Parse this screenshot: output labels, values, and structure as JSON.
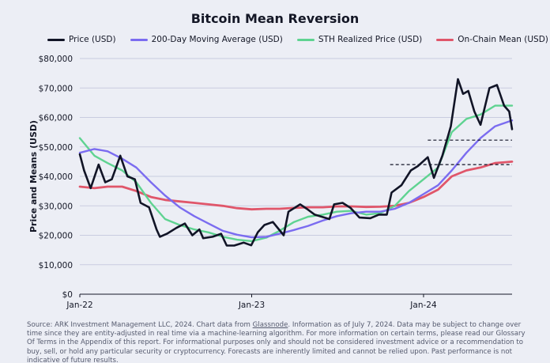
{
  "chart_data": {
    "type": "line",
    "title": "Bitcoin Mean Reversion",
    "ylabel": "Price and Means (USD)",
    "xlabel": "",
    "xlim": [
      "2022-01-01",
      "2024-07-07"
    ],
    "ylim": [
      0,
      80000
    ],
    "x_ticks": [
      {
        "date": "2022-01-01",
        "label": "Jan-22"
      },
      {
        "date": "2023-01-01",
        "label": "Jan-23"
      },
      {
        "date": "2024-01-01",
        "label": "Jan-24"
      }
    ],
    "y_ticks": [
      {
        "v": 0,
        "label": "$0"
      },
      {
        "v": 10000,
        "label": "$10,000"
      },
      {
        "v": 20000,
        "label": "$20,000"
      },
      {
        "v": 30000,
        "label": "$30,000"
      },
      {
        "v": 40000,
        "label": "$40,000"
      },
      {
        "v": 50000,
        "label": "$50,000"
      },
      {
        "v": 60000,
        "label": "$60,000"
      },
      {
        "v": 70000,
        "label": "$70,000"
      },
      {
        "v": 80000,
        "label": "$80,000"
      }
    ],
    "grid": true,
    "legend_position": "top",
    "series": [
      {
        "name": "Price (USD)",
        "color": "#111426",
        "width": 2.6,
        "points": [
          [
            "2022-01-01",
            47500
          ],
          [
            "2022-01-10",
            42000
          ],
          [
            "2022-01-24",
            36000
          ],
          [
            "2022-02-10",
            44000
          ],
          [
            "2022-02-24",
            38000
          ],
          [
            "2022-03-10",
            39000
          ],
          [
            "2022-03-28",
            47000
          ],
          [
            "2022-04-12",
            40000
          ],
          [
            "2022-04-28",
            39000
          ],
          [
            "2022-05-10",
            31000
          ],
          [
            "2022-05-28",
            29500
          ],
          [
            "2022-06-13",
            22000
          ],
          [
            "2022-06-20",
            19500
          ],
          [
            "2022-07-05",
            20500
          ],
          [
            "2022-07-25",
            22500
          ],
          [
            "2022-08-12",
            24000
          ],
          [
            "2022-08-28",
            20000
          ],
          [
            "2022-09-12",
            22000
          ],
          [
            "2022-09-20",
            19000
          ],
          [
            "2022-10-10",
            19500
          ],
          [
            "2022-10-28",
            20500
          ],
          [
            "2022-11-09",
            16500
          ],
          [
            "2022-11-25",
            16500
          ],
          [
            "2022-12-15",
            17500
          ],
          [
            "2022-12-31",
            16600
          ],
          [
            "2023-01-14",
            21000
          ],
          [
            "2023-01-28",
            23500
          ],
          [
            "2023-02-15",
            24500
          ],
          [
            "2023-03-10",
            20000
          ],
          [
            "2023-03-20",
            28000
          ],
          [
            "2023-04-14",
            30500
          ],
          [
            "2023-04-28",
            29000
          ],
          [
            "2023-05-15",
            27000
          ],
          [
            "2023-06-15",
            25500
          ],
          [
            "2023-06-25",
            30500
          ],
          [
            "2023-07-13",
            31000
          ],
          [
            "2023-07-30",
            29300
          ],
          [
            "2023-08-18",
            26000
          ],
          [
            "2023-09-10",
            25800
          ],
          [
            "2023-09-28",
            27000
          ],
          [
            "2023-10-15",
            27000
          ],
          [
            "2023-10-25",
            34500
          ],
          [
            "2023-11-15",
            37000
          ],
          [
            "2023-12-05",
            42000
          ],
          [
            "2023-12-20",
            43500
          ],
          [
            "2024-01-10",
            46500
          ],
          [
            "2024-01-23",
            39500
          ],
          [
            "2024-02-10",
            47000
          ],
          [
            "2024-02-28",
            57000
          ],
          [
            "2024-03-14",
            73000
          ],
          [
            "2024-03-25",
            68000
          ],
          [
            "2024-04-05",
            69000
          ],
          [
            "2024-04-18",
            62000
          ],
          [
            "2024-05-01",
            57500
          ],
          [
            "2024-05-20",
            70000
          ],
          [
            "2024-06-05",
            71000
          ],
          [
            "2024-06-20",
            64000
          ],
          [
            "2024-07-01",
            62000
          ],
          [
            "2024-07-07",
            56000
          ]
        ]
      },
      {
        "name": "200-Day Moving Average (USD)",
        "color": "#7b6cf0",
        "width": 2.4,
        "points": [
          [
            "2022-01-01",
            48000
          ],
          [
            "2022-02-01",
            49300
          ],
          [
            "2022-03-01",
            48500
          ],
          [
            "2022-04-01",
            46000
          ],
          [
            "2022-05-01",
            43000
          ],
          [
            "2022-06-01",
            38000
          ],
          [
            "2022-07-01",
            33500
          ],
          [
            "2022-08-01",
            29500
          ],
          [
            "2022-09-01",
            26500
          ],
          [
            "2022-10-01",
            24000
          ],
          [
            "2022-11-01",
            21500
          ],
          [
            "2022-12-01",
            20200
          ],
          [
            "2023-01-01",
            19300
          ],
          [
            "2023-02-01",
            19500
          ],
          [
            "2023-03-01",
            20500
          ],
          [
            "2023-04-01",
            21800
          ],
          [
            "2023-05-01",
            23200
          ],
          [
            "2023-06-01",
            25000
          ],
          [
            "2023-07-01",
            26500
          ],
          [
            "2023-08-01",
            27500
          ],
          [
            "2023-09-01",
            28000
          ],
          [
            "2023-10-01",
            28000
          ],
          [
            "2023-11-01",
            29000
          ],
          [
            "2023-12-01",
            31000
          ],
          [
            "2024-01-01",
            34000
          ],
          [
            "2024-02-01",
            37000
          ],
          [
            "2024-03-01",
            42000
          ],
          [
            "2024-04-01",
            48000
          ],
          [
            "2024-05-01",
            53000
          ],
          [
            "2024-06-01",
            57000
          ],
          [
            "2024-07-07",
            59000
          ]
        ]
      },
      {
        "name": "STH Realized Price (USD)",
        "color": "#5fd391",
        "width": 2.4,
        "points": [
          [
            "2022-01-01",
            53000
          ],
          [
            "2022-02-01",
            47000
          ],
          [
            "2022-03-01",
            44500
          ],
          [
            "2022-04-01",
            42000
          ],
          [
            "2022-05-01",
            38000
          ],
          [
            "2022-06-01",
            31000
          ],
          [
            "2022-07-01",
            25500
          ],
          [
            "2022-08-01",
            23500
          ],
          [
            "2022-09-01",
            22000
          ],
          [
            "2022-10-01",
            21000
          ],
          [
            "2022-11-01",
            19500
          ],
          [
            "2022-12-01",
            18500
          ],
          [
            "2023-01-01",
            18000
          ],
          [
            "2023-02-01",
            19200
          ],
          [
            "2023-03-01",
            21500
          ],
          [
            "2023-04-01",
            24500
          ],
          [
            "2023-05-01",
            26300
          ],
          [
            "2023-06-01",
            27000
          ],
          [
            "2023-07-01",
            28000
          ],
          [
            "2023-08-01",
            28300
          ],
          [
            "2023-09-01",
            27000
          ],
          [
            "2023-10-01",
            27500
          ],
          [
            "2023-11-01",
            30000
          ],
          [
            "2023-12-01",
            35000
          ],
          [
            "2024-01-01",
            39000
          ],
          [
            "2024-02-01",
            43000
          ],
          [
            "2024-03-01",
            55000
          ],
          [
            "2024-04-01",
            59500
          ],
          [
            "2024-05-01",
            61000
          ],
          [
            "2024-06-01",
            64000
          ],
          [
            "2024-07-07",
            64000
          ]
        ]
      },
      {
        "name": "On-Chain Mean (USD)",
        "color": "#e0566a",
        "width": 2.8,
        "points": [
          [
            "2022-01-01",
            36500
          ],
          [
            "2022-02-01",
            36000
          ],
          [
            "2022-03-01",
            36500
          ],
          [
            "2022-04-01",
            36500
          ],
          [
            "2022-05-01",
            35000
          ],
          [
            "2022-06-01",
            33000
          ],
          [
            "2022-07-01",
            32000
          ],
          [
            "2022-08-01",
            31500
          ],
          [
            "2022-09-01",
            31000
          ],
          [
            "2022-10-01",
            30500
          ],
          [
            "2022-11-01",
            30000
          ],
          [
            "2022-12-01",
            29200
          ],
          [
            "2023-01-01",
            28800
          ],
          [
            "2023-02-01",
            29000
          ],
          [
            "2023-03-01",
            29000
          ],
          [
            "2023-04-01",
            29300
          ],
          [
            "2023-05-01",
            29500
          ],
          [
            "2023-06-01",
            29500
          ],
          [
            "2023-07-01",
            29800
          ],
          [
            "2023-08-01",
            29800
          ],
          [
            "2023-09-01",
            29600
          ],
          [
            "2023-10-01",
            29700
          ],
          [
            "2023-11-01",
            30000
          ],
          [
            "2023-12-01",
            31000
          ],
          [
            "2024-01-01",
            33000
          ],
          [
            "2024-02-01",
            35500
          ],
          [
            "2024-03-01",
            40000
          ],
          [
            "2024-04-01",
            42000
          ],
          [
            "2024-05-01",
            43000
          ],
          [
            "2024-06-01",
            44500
          ],
          [
            "2024-07-07",
            45000
          ]
        ]
      }
    ],
    "reference_lines": [
      {
        "style": "dashed",
        "color": "#111426",
        "y": 52300,
        "from": "2024-01-10",
        "to": "2024-07-07"
      },
      {
        "style": "dashed",
        "color": "#111426",
        "y": 44000,
        "from": "2023-10-22",
        "to": "2024-07-07"
      }
    ]
  },
  "footer": {
    "pre": "Source: ARK Investment Management LLC, 2024. Chart data from ",
    "link": "Glassnode",
    "post": ". Information as of July 7, 2024. Data may be subject to change over time since they are entity-adjusted in real time via a machine-learning algorithm. For more information on certain terms, please read our Glossary Of Terms in the Appendix of this report. For informational purposes only and should not be considered investment advice or a recommendation to buy, sell, or hold any particular security or cryptocurrency. Forecasts are inherently limited and cannot be relied upon. Past performance is not indicative of future results."
  }
}
